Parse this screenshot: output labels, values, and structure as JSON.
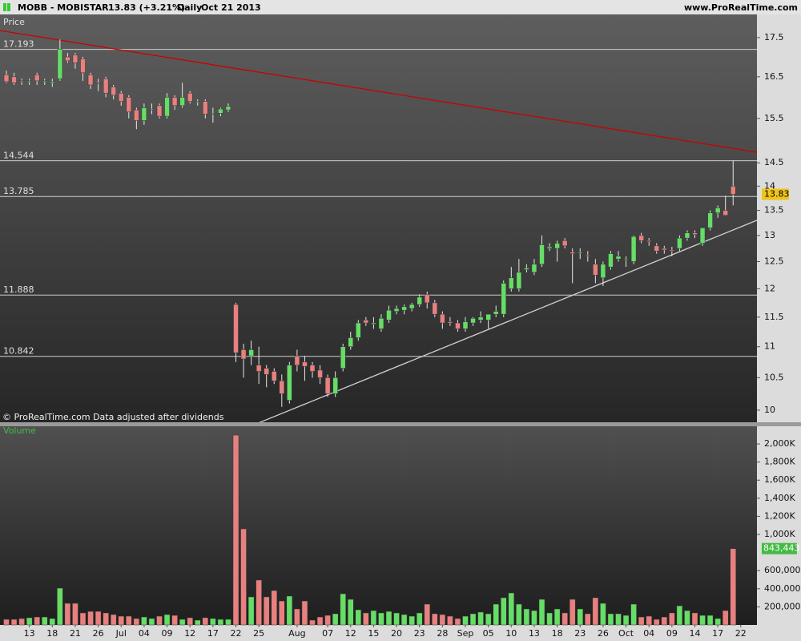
{
  "header": {
    "symbol": "MOBB - MOBISTAR",
    "quote": "13.83 (+3.21%)",
    "period": "Daily",
    "date": "Oct 21 2013",
    "site": "www.ProRealTime.com"
  },
  "chart_data": [
    {
      "type": "candlestick",
      "title": "Price",
      "note": "© ProRealTime.com  Data adjusted after dividends",
      "log_scale": true,
      "ylim": [
        9.82,
        18.12
      ],
      "yticks": [
        10,
        10.5,
        11,
        11.5,
        12,
        12.5,
        13,
        13.5,
        14,
        14.5,
        15.5,
        16.5,
        17.5
      ],
      "up_color": "#66dd66",
      "down_color": "#e88080",
      "last_price_color": "#f0c419",
      "hlines": [
        17.193,
        14.544,
        13.785,
        11.888,
        10.842
      ],
      "trendlines": [
        {
          "color": "#cc0000",
          "x": [
            0,
            96
          ],
          "y": [
            17.66,
            14.79
          ]
        },
        {
          "color": "#d0d0d0",
          "x": [
            34,
            96
          ],
          "y": [
            9.858,
            13.17
          ]
        }
      ],
      "open": [
        16.55,
        16.5,
        16.4,
        16.38,
        16.55,
        16.38,
        16.35,
        16.45,
        17.0,
        17.05,
        16.95,
        16.55,
        16.35,
        16.45,
        16.25,
        16.1,
        16.0,
        15.7,
        15.45,
        15.7,
        15.8,
        15.55,
        16.0,
        15.8,
        16.1,
        15.88,
        15.9,
        15.6,
        15.62,
        15.7,
        11.72,
        10.95,
        10.85,
        10.7,
        10.65,
        10.6,
        10.45,
        10.15,
        10.85,
        10.75,
        10.7,
        10.62,
        10.5,
        10.25,
        10.65,
        11.0,
        11.15,
        11.45,
        11.38,
        11.3,
        11.45,
        11.6,
        11.62,
        11.65,
        11.72,
        11.9,
        11.75,
        11.55,
        11.42,
        11.4,
        11.3,
        11.4,
        11.45,
        11.45,
        11.55,
        11.55,
        12.0,
        12.0,
        12.35,
        12.3,
        12.45,
        12.75,
        12.75,
        12.9,
        12.68,
        12.66,
        12.62,
        12.45,
        12.2,
        12.4,
        12.55,
        12.55,
        12.5,
        13.0,
        12.9,
        12.8,
        12.75,
        12.72,
        12.75,
        12.95,
        13.05,
        12.85,
        13.15,
        13.45,
        13.5,
        14.0
      ],
      "high": [
        16.65,
        16.6,
        16.45,
        16.45,
        16.6,
        16.45,
        16.45,
        17.45,
        17.1,
        17.1,
        17.0,
        16.6,
        16.45,
        16.5,
        16.3,
        16.15,
        16.05,
        15.75,
        15.85,
        15.85,
        15.85,
        16.1,
        16.05,
        16.35,
        16.15,
        15.95,
        15.95,
        15.75,
        15.75,
        15.85,
        11.75,
        11.05,
        11.1,
        11.0,
        10.7,
        10.65,
        10.55,
        10.75,
        10.95,
        10.85,
        10.75,
        10.7,
        10.55,
        10.6,
        11.05,
        11.25,
        11.45,
        11.5,
        11.5,
        11.55,
        11.7,
        11.7,
        11.72,
        11.75,
        11.9,
        11.95,
        11.8,
        11.6,
        11.5,
        11.45,
        11.5,
        11.5,
        11.6,
        11.55,
        11.7,
        12.15,
        12.4,
        12.55,
        12.45,
        12.55,
        13.0,
        12.85,
        12.9,
        12.95,
        12.75,
        12.75,
        12.7,
        12.55,
        12.5,
        12.7,
        12.7,
        12.6,
        13.0,
        13.05,
        12.95,
        12.85,
        12.8,
        12.78,
        13.0,
        13.1,
        13.1,
        13.15,
        13.5,
        13.6,
        13.8,
        14.55
      ],
      "low": [
        16.35,
        16.3,
        16.3,
        16.3,
        16.3,
        16.3,
        16.25,
        16.4,
        16.85,
        16.7,
        16.4,
        16.2,
        16.15,
        16.0,
        15.95,
        15.8,
        15.5,
        15.25,
        15.35,
        15.6,
        15.5,
        15.5,
        15.7,
        15.75,
        15.85,
        15.8,
        15.5,
        15.4,
        15.55,
        15.65,
        10.75,
        10.5,
        10.7,
        10.4,
        10.35,
        10.4,
        10.05,
        10.1,
        10.6,
        10.45,
        10.5,
        10.4,
        10.2,
        10.2,
        10.6,
        10.95,
        11.1,
        11.35,
        11.3,
        11.25,
        11.4,
        11.55,
        11.55,
        11.6,
        11.68,
        11.65,
        11.5,
        11.3,
        11.35,
        11.25,
        11.25,
        11.35,
        11.4,
        11.3,
        11.5,
        11.5,
        11.95,
        11.95,
        12.3,
        12.25,
        12.4,
        12.7,
        12.5,
        12.75,
        12.1,
        12.55,
        12.5,
        12.1,
        12.05,
        12.35,
        12.5,
        12.4,
        12.45,
        12.85,
        12.8,
        12.65,
        12.65,
        12.6,
        12.7,
        12.9,
        12.95,
        12.8,
        13.1,
        13.35,
        13.4,
        13.6
      ],
      "close": [
        16.38,
        16.35,
        16.38,
        16.4,
        16.4,
        16.4,
        16.38,
        17.2,
        16.9,
        16.85,
        16.6,
        16.3,
        16.33,
        16.1,
        16.05,
        15.9,
        15.65,
        15.45,
        15.75,
        15.72,
        15.55,
        16.0,
        15.8,
        16.0,
        15.9,
        15.9,
        15.6,
        15.62,
        15.72,
        15.78,
        10.9,
        10.8,
        10.95,
        10.6,
        10.55,
        10.45,
        10.25,
        10.7,
        10.7,
        10.68,
        10.6,
        10.5,
        10.25,
        10.5,
        11.0,
        11.15,
        11.4,
        11.4,
        11.4,
        11.48,
        11.62,
        11.65,
        11.68,
        11.72,
        11.85,
        11.75,
        11.55,
        11.4,
        11.4,
        11.3,
        11.42,
        11.48,
        11.5,
        11.55,
        11.6,
        12.1,
        12.2,
        12.3,
        12.38,
        12.45,
        12.82,
        12.78,
        12.85,
        12.8,
        12.65,
        12.68,
        12.6,
        12.25,
        12.45,
        12.65,
        12.6,
        12.55,
        12.98,
        12.9,
        12.88,
        12.7,
        12.72,
        12.7,
        12.95,
        13.05,
        13.02,
        13.15,
        13.45,
        13.55,
        13.4,
        13.83
      ]
    },
    {
      "type": "bar",
      "title": "Volume",
      "ylim": [
        0,
        2195000
      ],
      "yticks": [
        {
          "value": 200000,
          "label": "200,000"
        },
        {
          "value": 400000,
          "label": "400,000"
        },
        {
          "value": 600000,
          "label": "600,000"
        },
        {
          "value": 1000000,
          "label": "1,000K"
        },
        {
          "value": 1200000,
          "label": "1,200K"
        },
        {
          "value": 1400000,
          "label": "1,400K"
        },
        {
          "value": 1600000,
          "label": "1,600K"
        },
        {
          "value": 1800000,
          "label": "1,800K"
        },
        {
          "value": 2000000,
          "label": "2,000K"
        }
      ],
      "label_color": "#44bb44",
      "categories": [
        null,
        null,
        null,
        "13",
        null,
        null,
        "18",
        null,
        null,
        "21",
        null,
        null,
        "26",
        null,
        null,
        "Jul",
        null,
        null,
        "04",
        null,
        null,
        "09",
        null,
        null,
        "12",
        null,
        null,
        "17",
        null,
        null,
        "22",
        null,
        null,
        "25",
        null,
        null,
        null,
        null,
        "Aug",
        null,
        null,
        null,
        "07",
        null,
        null,
        "12",
        null,
        null,
        "15",
        null,
        null,
        "20",
        null,
        null,
        "23",
        null,
        null,
        "28",
        null,
        null,
        "Sep",
        null,
        null,
        "05",
        null,
        null,
        "10",
        null,
        null,
        "13",
        null,
        null,
        "18",
        null,
        null,
        "23",
        null,
        null,
        "26",
        null,
        null,
        "Oct",
        null,
        null,
        "04",
        null,
        null,
        "09",
        null,
        null,
        "14",
        null,
        null,
        "17",
        null,
        null,
        "22"
      ],
      "values": [
        62000,
        62000,
        71000,
        80000,
        88000,
        88000,
        71000,
        407000,
        239000,
        239000,
        133000,
        150000,
        150000,
        133000,
        115000,
        97000,
        97000,
        71000,
        88000,
        71000,
        97000,
        115000,
        106000,
        62000,
        80000,
        53000,
        80000,
        71000,
        62000,
        62000,
        2097000,
        1062000,
        310000,
        496000,
        310000,
        380000,
        265000,
        319000,
        177000,
        265000,
        53000,
        88000,
        106000,
        124000,
        345000,
        283000,
        168000,
        133000,
        159000,
        133000,
        150000,
        133000,
        115000,
        97000,
        133000,
        230000,
        124000,
        115000,
        97000,
        71000,
        97000,
        124000,
        142000,
        124000,
        230000,
        301000,
        354000,
        230000,
        177000,
        159000,
        283000,
        133000,
        177000,
        133000,
        283000,
        177000,
        124000,
        301000,
        239000,
        124000,
        124000,
        106000,
        230000,
        88000,
        97000,
        62000,
        88000,
        133000,
        212000,
        159000,
        133000,
        106000,
        106000,
        71000,
        159000,
        843443,
        null
      ],
      "value_labels": [
        null,
        null,
        null,
        null,
        null,
        null,
        null,
        null,
        null,
        null,
        null,
        null,
        null,
        null,
        null,
        null,
        null,
        null,
        null,
        null,
        null,
        null,
        null,
        null,
        null,
        null,
        null,
        null,
        null,
        null,
        null,
        null,
        null,
        null,
        null,
        null,
        null,
        null,
        null,
        null,
        null,
        null,
        null,
        null,
        null,
        null,
        null,
        null,
        null,
        null,
        null,
        null,
        null,
        null,
        null,
        null,
        null,
        null,
        null,
        null,
        null,
        null,
        null,
        null,
        null,
        null,
        null,
        null,
        null,
        null,
        null,
        null,
        null,
        null,
        null,
        null,
        null,
        null,
        null,
        null,
        null,
        null,
        null,
        null,
        null,
        null,
        null,
        null,
        null,
        null,
        null,
        null,
        null,
        null,
        null,
        "843,443",
        null
      ]
    }
  ]
}
